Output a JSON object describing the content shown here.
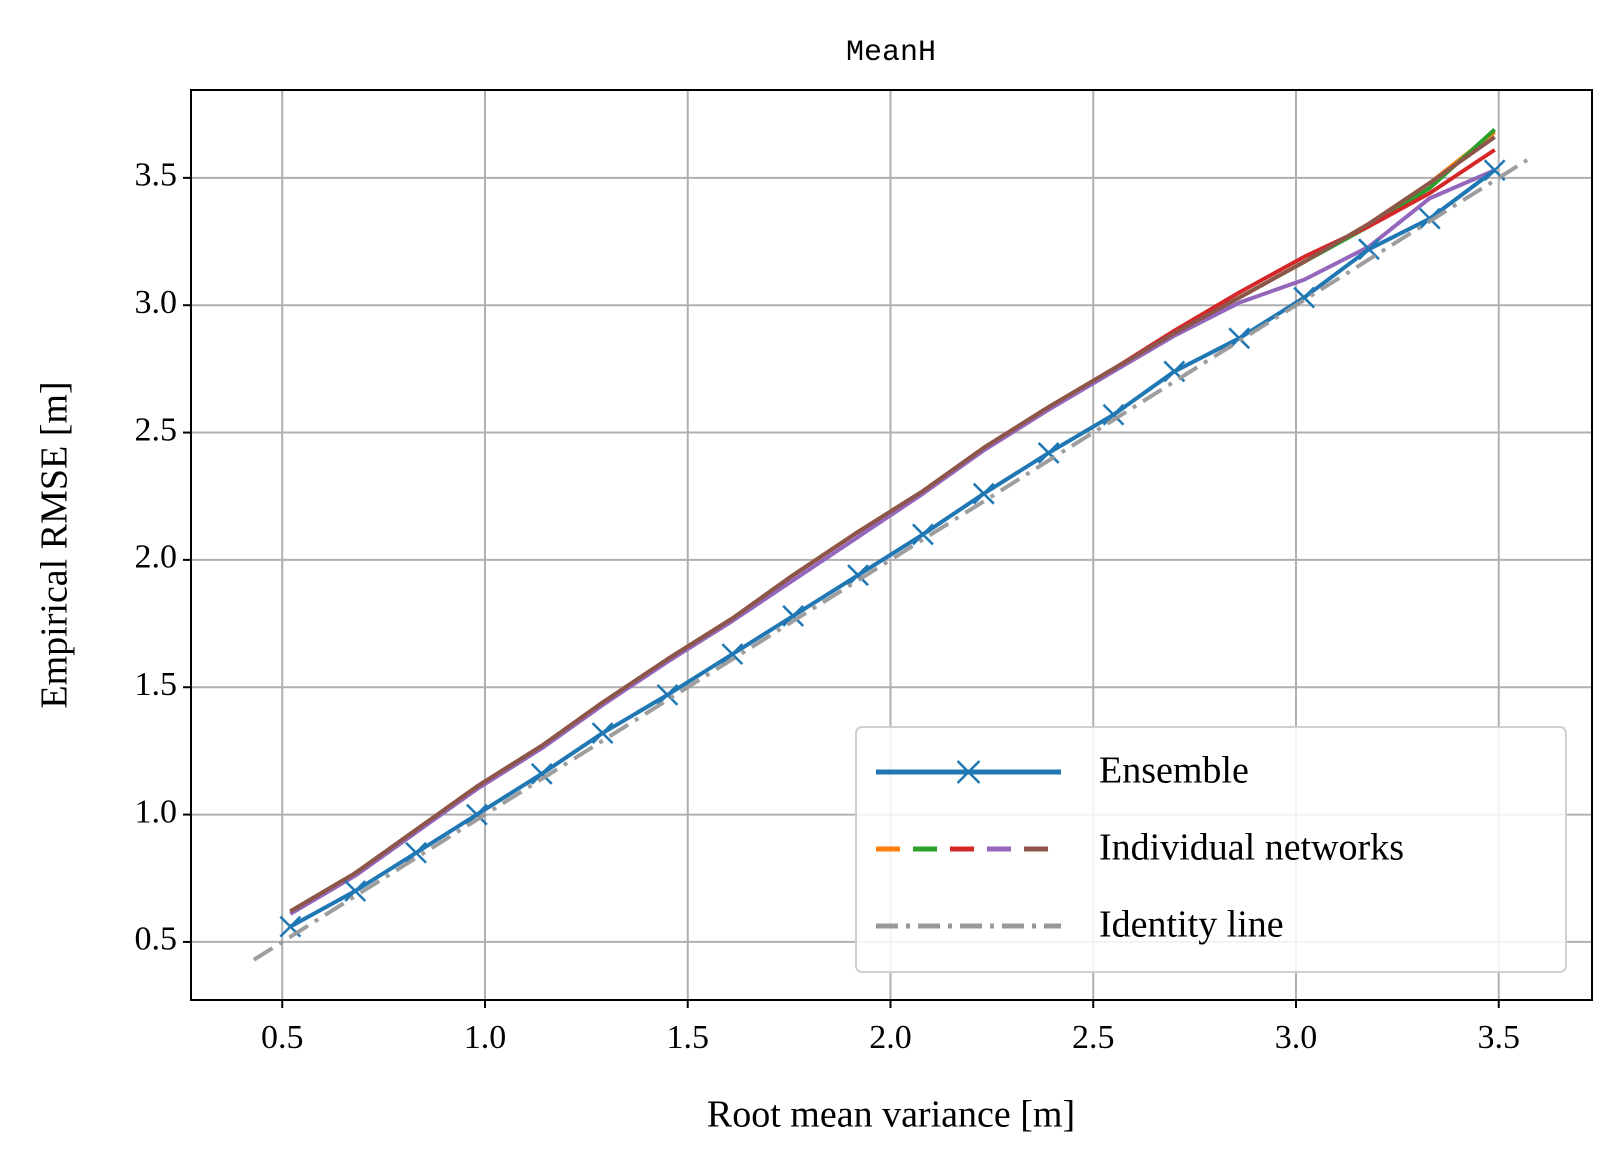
{
  "chart_data": {
    "type": "line",
    "title": "MeanH",
    "x_label": "Root mean variance [m]",
    "y_label": "Empirical RMSE [m]",
    "xlim": [
      0.275,
      3.73
    ],
    "ylim": [
      0.272,
      3.845
    ],
    "xticks": [
      0.5,
      {
        "value": 1,
        "label": "1.0"
      },
      1.5,
      {
        "value": 2,
        "label": "2.0"
      },
      2.5,
      {
        "value": 3,
        "label": "3.0"
      },
      3.5
    ],
    "yticks": [
      0.5,
      {
        "value": 1,
        "label": "1.0"
      },
      1.5,
      {
        "value": 2,
        "label": "2.0"
      },
      2.5,
      {
        "value": 3,
        "label": "3.0"
      },
      3.5
    ],
    "grid": true,
    "legend": "lower right",
    "x": [
      0.52,
      0.68,
      0.83,
      0.98,
      1.14,
      1.29,
      1.45,
      1.61,
      1.76,
      1.92,
      2.08,
      2.23,
      2.39,
      2.55,
      2.7,
      2.86,
      3.02,
      3.18,
      3.33,
      3.49
    ],
    "series": [
      {
        "name": "Ensemble",
        "color": "#1f77b4",
        "marker": "x",
        "values": [
          0.56,
          0.7,
          0.85,
          1.0,
          1.16,
          1.32,
          1.47,
          1.63,
          1.78,
          1.94,
          2.1,
          2.26,
          2.42,
          2.57,
          2.74,
          2.87,
          3.03,
          3.22,
          3.34,
          3.53
        ]
      },
      {
        "name": "Individual networks",
        "members": [
          {
            "color": "#ff7f0e",
            "values": [
              0.62,
              0.77,
              0.94,
              1.11,
              1.27,
              1.44,
              1.61,
              1.77,
              1.94,
              2.11,
              2.27,
              2.44,
              2.6,
              2.75,
              2.89,
              3.03,
              3.17,
              3.32,
              3.48,
              3.68
            ]
          },
          {
            "color": "#2ca02c",
            "values": [
              0.62,
              0.77,
              0.94,
              1.11,
              1.27,
              1.44,
              1.61,
              1.77,
              1.94,
              2.11,
              2.27,
              2.44,
              2.6,
              2.75,
              2.89,
              3.03,
              3.17,
              3.31,
              3.46,
              3.69
            ]
          },
          {
            "color": "#d62728",
            "values": [
              0.62,
              0.77,
              0.94,
              1.11,
              1.27,
              1.44,
              1.61,
              1.77,
              1.94,
              2.11,
              2.27,
              2.44,
              2.6,
              2.75,
              2.9,
              3.05,
              3.19,
              3.31,
              3.44,
              3.61
            ]
          },
          {
            "color": "#9467bd",
            "values": [
              0.61,
              0.76,
              0.93,
              1.1,
              1.26,
              1.43,
              1.6,
              1.76,
              1.92,
              2.09,
              2.26,
              2.43,
              2.59,
              2.74,
              2.88,
              3.01,
              3.1,
              3.23,
              3.42,
              3.53
            ]
          },
          {
            "color": "#8c564b",
            "values": [
              0.62,
              0.77,
              0.94,
              1.11,
              1.27,
              1.44,
              1.61,
              1.77,
              1.94,
              2.11,
              2.27,
              2.44,
              2.6,
              2.75,
              2.89,
              3.03,
              3.17,
              3.32,
              3.48,
              3.66
            ]
          }
        ]
      },
      {
        "name": "Identity line",
        "color": "#999999",
        "dash": "dashdot",
        "x": [
          0.43,
          3.57
        ],
        "values": [
          0.43,
          3.57
        ]
      }
    ]
  }
}
